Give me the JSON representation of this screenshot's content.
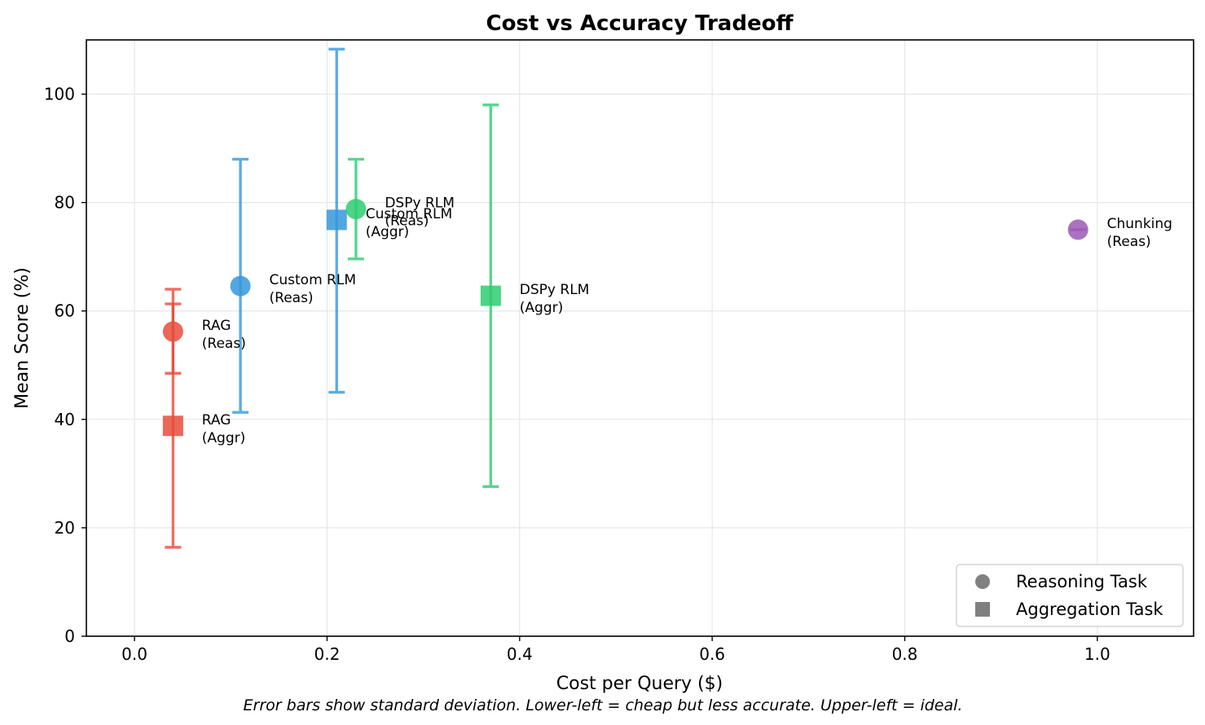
{
  "chart_data": {
    "type": "scatter",
    "title": "Cost vs Accuracy Tradeoff",
    "xlabel": "Cost per Query ($)",
    "ylabel": "Mean Score (%)",
    "caption": "Error bars show standard deviation. Lower-left = cheap but less accurate. Upper-left = ideal.",
    "xlim": [
      -0.05,
      1.1
    ],
    "ylim": [
      0,
      110
    ],
    "xticks": [
      0.0,
      0.2,
      0.4,
      0.6,
      0.8,
      1.0
    ],
    "xtick_labels": [
      "0.0",
      "0.2",
      "0.4",
      "0.6",
      "0.8",
      "1.0"
    ],
    "yticks": [
      0,
      20,
      40,
      60,
      80,
      100
    ],
    "ytick_labels": [
      "0",
      "20",
      "40",
      "60",
      "80",
      "100"
    ],
    "grid": true,
    "legend_position": "bottom-right",
    "legend": [
      {
        "label": "Reasoning Task",
        "marker": "circle"
      },
      {
        "label": "Aggregation Task",
        "marker": "square"
      }
    ],
    "points": [
      {
        "method": "RAG",
        "task": "Reas",
        "label_lines": [
          "RAG",
          "(Reas)"
        ],
        "marker": "circle",
        "color": "#e74c3c",
        "x": 0.04,
        "y": 56.2,
        "yerr_low": 48.5,
        "yerr_high": 64.0
      },
      {
        "method": "RAG",
        "task": "Aggr",
        "label_lines": [
          "RAG",
          "(Aggr)"
        ],
        "marker": "square",
        "color": "#e74c3c",
        "x": 0.04,
        "y": 38.8,
        "yerr_low": 16.4,
        "yerr_high": 61.3
      },
      {
        "method": "Custom RLM",
        "task": "Reas",
        "label_lines": [
          "Custom RLM",
          "(Reas)"
        ],
        "marker": "circle",
        "color": "#3498db",
        "x": 0.11,
        "y": 64.6,
        "yerr_low": 41.3,
        "yerr_high": 88.0
      },
      {
        "method": "Custom RLM",
        "task": "Aggr",
        "label_lines": [
          "Custom RLM",
          "(Aggr)"
        ],
        "marker": "square",
        "color": "#3498db",
        "x": 0.21,
        "y": 76.8,
        "yerr_low": 45.0,
        "yerr_high": 108.3
      },
      {
        "method": "DSPy RLM",
        "task": "Reas",
        "label_lines": [
          "DSPy RLM",
          "(Reas)"
        ],
        "marker": "circle",
        "color": "#2ecc71",
        "x": 0.23,
        "y": 78.8,
        "yerr_low": 69.6,
        "yerr_high": 88.0
      },
      {
        "method": "DSPy RLM",
        "task": "Aggr",
        "label_lines": [
          "DSPy RLM",
          "(Aggr)"
        ],
        "marker": "square",
        "color": "#2ecc71",
        "x": 0.37,
        "y": 62.8,
        "yerr_low": 27.6,
        "yerr_high": 98.0
      },
      {
        "method": "Chunking",
        "task": "Reas",
        "label_lines": [
          "Chunking",
          "(Reas)"
        ],
        "marker": "circle",
        "color": "#9b59b6",
        "x": 0.98,
        "y": 75.0,
        "yerr_low": 75.0,
        "yerr_high": 75.0
      }
    ]
  }
}
